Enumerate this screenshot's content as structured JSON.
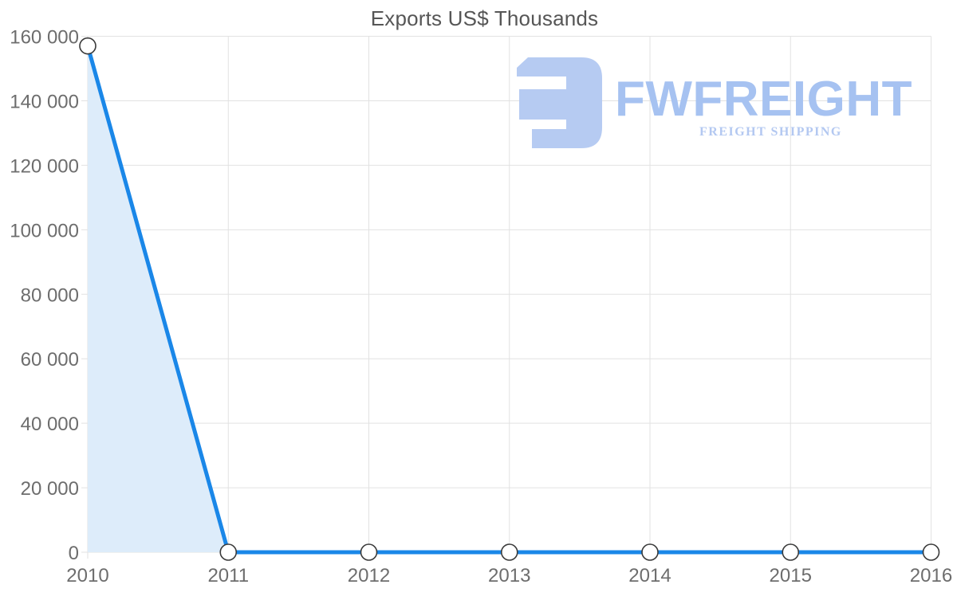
{
  "page": {
    "background": "#ffffff"
  },
  "chart_data": {
    "type": "area",
    "title": "Exports US$ Thousands",
    "x": [
      2010,
      2011,
      2012,
      2013,
      2014,
      2015,
      2016
    ],
    "x_labels": [
      "2010",
      "2011",
      "2012",
      "2013",
      "2014",
      "2015",
      "2016"
    ],
    "series": [
      {
        "name": "Exports",
        "values": [
          157000,
          0,
          0,
          0,
          0,
          0,
          0
        ]
      }
    ],
    "xlabel": "",
    "ylabel": "",
    "ylim": [
      0,
      160000
    ],
    "y_ticks": [
      0,
      20000,
      40000,
      60000,
      80000,
      100000,
      120000,
      140000,
      160000
    ],
    "y_tick_labels": [
      "0",
      "20 000",
      "40 000",
      "60 000",
      "80 000",
      "100 000",
      "120 000",
      "140 000",
      "160 000"
    ],
    "grid": true,
    "legend": "none",
    "colors": {
      "line": "#1a87e8",
      "area_fill": "#ddecfa",
      "marker_fill": "#ffffff",
      "marker_stroke": "#3a3a3a",
      "gridline": "#e2e2e2",
      "axis_label": "#6d6d6d",
      "title": "#565656"
    }
  },
  "watermark": {
    "brand": "FWFREIGHT",
    "tagline": "FREIGHT SHIPPING",
    "icon": "fwfreight-logo-icon",
    "color_icon": "#b6cbf2",
    "color_brand": "#a6c2f1",
    "color_tagline": "#b3c8f1"
  }
}
